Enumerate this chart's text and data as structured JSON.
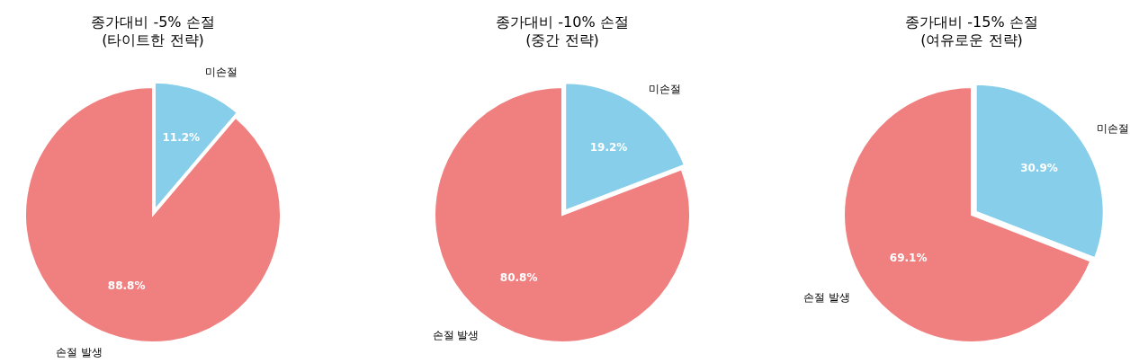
{
  "chart_data": [
    {
      "type": "pie",
      "title": "종가대비 -5% 손절\n(타이트한 전략)",
      "categories": [
        "미손절",
        "손절 발생"
      ],
      "values": [
        11.2,
        88.8
      ],
      "colors": [
        "#87ceeb",
        "#f08080"
      ],
      "value_labels": [
        "11.2%",
        "88.8%"
      ]
    },
    {
      "type": "pie",
      "title": "종가대비 -10% 손절\n(중간 전략)",
      "categories": [
        "미손절",
        "손절 발생"
      ],
      "values": [
        19.2,
        80.8
      ],
      "colors": [
        "#87ceeb",
        "#f08080"
      ],
      "value_labels": [
        "19.2%",
        "80.8%"
      ]
    },
    {
      "type": "pie",
      "title": "종가대비 -15% 손절\n(여유로운 전략)",
      "categories": [
        "미손절",
        "손절 발생"
      ],
      "values": [
        30.9,
        69.1
      ],
      "colors": [
        "#87ceeb",
        "#f08080"
      ],
      "value_labels": [
        "30.9%",
        "69.1%"
      ]
    }
  ]
}
